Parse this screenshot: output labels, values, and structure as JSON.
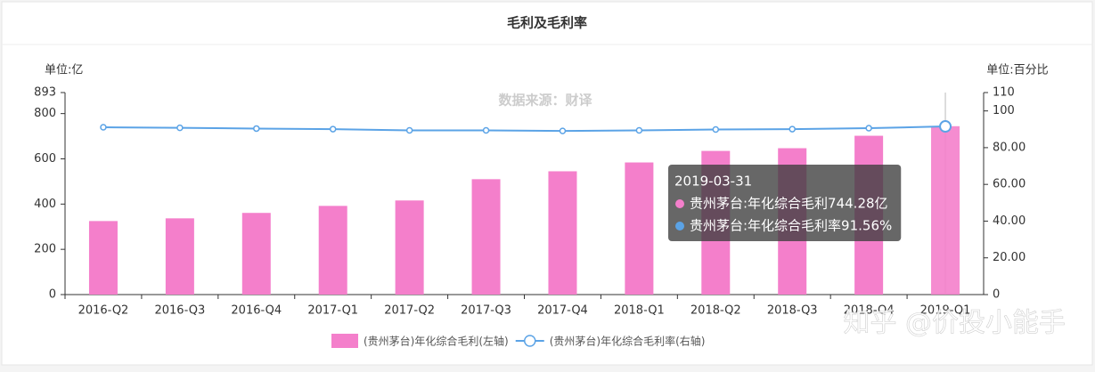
{
  "chart_data": {
    "type": "bar",
    "title": "毛利及毛利率",
    "y_label": "单位:亿",
    "y2_label": "单位:百分比",
    "source_note": "数据来源：财译",
    "categories": [
      "2016-Q2",
      "2016-Q3",
      "2016-Q4",
      "2017-Q1",
      "2017-Q2",
      "2017-Q3",
      "2017-Q4",
      "2018-Q1",
      "2018-Q2",
      "2018-Q3",
      "2018-Q4",
      "2019-Q1"
    ],
    "series": [
      {
        "name": "(贵州茅台)年化综合毛利(左轴)",
        "type": "bar",
        "color": "#f47fcb",
        "axis": "y",
        "values": [
          325,
          337,
          361,
          392,
          416,
          510,
          545,
          584,
          635,
          647,
          702,
          744.28
        ]
      },
      {
        "name": "(贵州茅台)年化综合毛利率(右轴)",
        "type": "line",
        "color": "#5ba3e6",
        "axis": "y2",
        "values": [
          91.1,
          90.8,
          90.4,
          90.1,
          89.4,
          89.4,
          89.1,
          89.4,
          89.9,
          90.1,
          90.6,
          91.56
        ]
      }
    ],
    "ylim": [
      0,
      893
    ],
    "yticks": [
      0,
      200,
      400,
      600,
      800,
      893
    ],
    "y2lim": [
      0,
      110
    ],
    "y2ticks": [
      0,
      {
        "value": 20,
        "label": "20.00"
      },
      {
        "value": 40,
        "label": "40.00"
      },
      {
        "value": 60,
        "label": "60.00"
      },
      {
        "value": 80,
        "label": "80.00"
      },
      100,
      110
    ],
    "tooltip": {
      "title": "2019-03-31",
      "items": [
        "贵州茅台:年化综合毛利744.28亿",
        "贵州茅台:年化综合毛利率91.56%"
      ]
    }
  },
  "watermark": "知乎 @价投小能手"
}
